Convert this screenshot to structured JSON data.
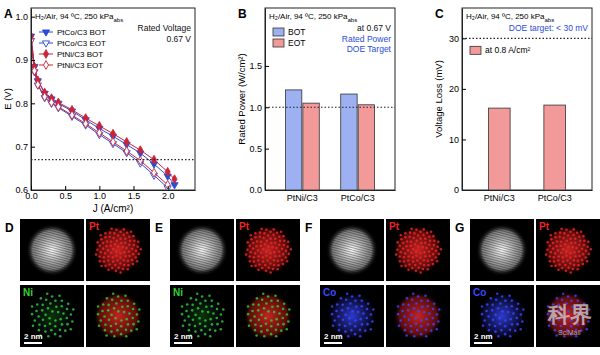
{
  "chart_data": [
    {
      "panel": "A",
      "type": "line",
      "title": "H₂/Air, 94 ºC, 250 kPa",
      "title_sub": "abs",
      "x_label": "J (A/cm²)",
      "y_label": "E (V)",
      "x": [
        0,
        0.05,
        0.1,
        0.2,
        0.3,
        0.4,
        0.6,
        0.8,
        1.0,
        1.2,
        1.4,
        1.6,
        1.8,
        2.0,
        2.1
      ],
      "series": [
        {
          "name": "PtCo/C3 BOT",
          "color": "#2a4bd7",
          "marker": "triangle-down",
          "line_style": "solid",
          "values": [
            0.955,
            0.885,
            0.852,
            0.823,
            0.81,
            0.8,
            0.782,
            0.762,
            0.742,
            0.724,
            0.705,
            0.685,
            0.66,
            0.632,
            0.612
          ]
        },
        {
          "name": "PtCo/C3 EOT",
          "color": "#2a4bd7",
          "marker": "triangle-down-open",
          "line_style": "solid",
          "values": [
            0.945,
            0.873,
            0.842,
            0.813,
            0.8,
            0.79,
            0.77,
            0.75,
            0.728,
            0.707,
            0.686,
            0.662,
            0.634,
            0.605,
            null
          ]
        },
        {
          "name": "PtNi/C3 BOT",
          "color": "#c9253a",
          "marker": "diamond",
          "line_style": "solid",
          "values": [
            0.955,
            0.885,
            0.853,
            0.825,
            0.812,
            0.802,
            0.785,
            0.766,
            0.748,
            0.73,
            0.711,
            0.692,
            0.67,
            0.642,
            0.625
          ]
        },
        {
          "name": "PtNi/C3 EOT",
          "color": "#c9253a",
          "marker": "diamond-open",
          "line_style": "solid",
          "values": [
            0.945,
            0.875,
            0.843,
            0.815,
            0.802,
            0.792,
            0.773,
            0.753,
            0.732,
            0.711,
            0.69,
            0.668,
            0.64,
            0.612,
            null
          ]
        }
      ],
      "xlim": [
        0,
        2.4
      ],
      "xticks": [
        {
          "value": 0,
          "label": "0.0"
        },
        0.5,
        {
          "value": 1,
          "label": "1.0"
        },
        1.5,
        {
          "value": 2,
          "label": "2.0"
        }
      ],
      "ylim": [
        0.6,
        1.02
      ],
      "yticks": [
        0.6,
        0.7,
        0.8,
        0.9,
        {
          "value": 1,
          "label": "1.0"
        }
      ],
      "reference_line": 0.67,
      "annotations": [
        {
          "text": "Rated Voltage",
          "color": "#111111"
        },
        {
          "text": "0.67 V",
          "color": "#111111"
        }
      ],
      "legend": "top-left"
    },
    {
      "panel": "B",
      "type": "bar",
      "title": "H₂/Air, 94 ºC, 250 kPa",
      "title_sub": "abs",
      "y_label": "Rated Power (W/cm²)",
      "categories": [
        "PtNi/C3",
        "PtCo/C3"
      ],
      "series": [
        {
          "name": "BOT",
          "color": "#9db0f2",
          "values": [
            1.21,
            1.16
          ]
        },
        {
          "name": "EOT",
          "color": "#f29a9a",
          "values": [
            1.05,
            1.03
          ]
        }
      ],
      "ylim": [
        0,
        2.2
      ],
      "yticks": [
        {
          "value": 0,
          "label": "0.0"
        },
        0.5,
        {
          "value": 1,
          "label": "1.0"
        },
        1.5
      ],
      "reference_line": 1.0,
      "annotations": [
        {
          "text": "at 0.67 V",
          "color": "#111111"
        },
        {
          "text": "Rated Power",
          "color": "#2a4bd7"
        },
        {
          "text": "DOE Target",
          "color": "#2a4bd7"
        }
      ],
      "legend": "top-left"
    },
    {
      "panel": "C",
      "type": "bar",
      "title": "H₂/Air, 94 ºC, 250 kPa",
      "title_sub": "abs",
      "y_label": "Voltage Loss (mV)",
      "categories": [
        "PtNi/C3",
        "PtCo/C3"
      ],
      "series": [
        {
          "name": "at 0.8 A/cm²",
          "color": "#f29a9a",
          "values": [
            16.2,
            16.8
          ]
        }
      ],
      "ylim": [
        0,
        36
      ],
      "yticks": [
        0,
        10,
        20,
        30
      ],
      "reference_line": 30,
      "annotations": [
        {
          "text": "DOE target: < 30 mV",
          "color": "#2a4bd7"
        }
      ],
      "legend": "top-left"
    }
  ],
  "images": [
    {
      "panel": "D",
      "labels": [
        "Pt",
        "Ni"
      ],
      "colors": [
        "#e82828",
        "#30d030"
      ],
      "scale_bar": "2 nm"
    },
    {
      "panel": "E",
      "labels": [
        "Pt",
        "Ni"
      ],
      "colors": [
        "#e82828",
        "#30d030"
      ],
      "scale_bar": "2 nm"
    },
    {
      "panel": "F",
      "labels": [
        "Pt",
        "Co"
      ],
      "colors": [
        "#e82828",
        "#3848ff"
      ],
      "scale_bar": "2 nm"
    },
    {
      "panel": "G",
      "labels": [
        "Pt",
        "Co"
      ],
      "colors": [
        "#e82828",
        "#3848ff"
      ],
      "scale_bar": "2 nm"
    }
  ],
  "watermark": [
    "科界",
    "SciMall"
  ]
}
